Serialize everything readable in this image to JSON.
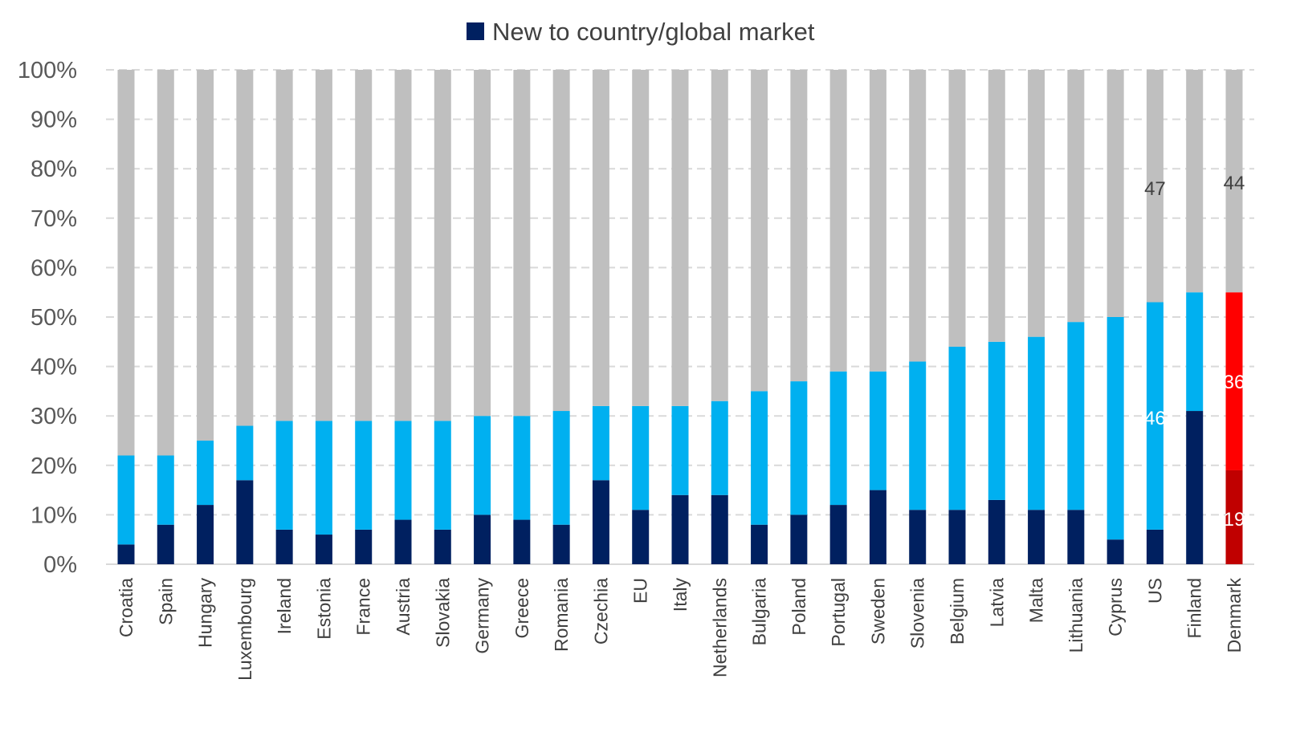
{
  "chart_data": {
    "type": "bar",
    "stacked": true,
    "legend": {
      "position": "top",
      "entries": [
        {
          "label": "New to country/global market",
          "color": "#002060"
        }
      ]
    },
    "ylim": [
      0,
      100
    ],
    "y_ticks": [
      "0%",
      "10%",
      "20%",
      "30%",
      "40%",
      "50%",
      "60%",
      "70%",
      "80%",
      "90%",
      "100%"
    ],
    "grid": "horizontal dashed",
    "categories": [
      "Croatia",
      "Spain",
      "Hungary",
      "Luxembourg",
      "Ireland",
      "Estonia",
      "France",
      "Austria",
      "Slovakia",
      "Germany",
      "Greece",
      "Romania",
      "Czechia",
      "EU",
      "Italy",
      "Netherlands",
      "Bulgaria",
      "Poland",
      "Portugal",
      "Sweden",
      "Slovenia",
      "Belgium",
      "Latvia",
      "Malta",
      "Lithuania",
      "Cyprus",
      "US",
      "Finland",
      "Denmark"
    ],
    "series": [
      {
        "name": "New to country/global market",
        "color": "#002060",
        "highlight_color": "#C00000",
        "values": [
          4,
          8,
          12,
          17,
          7,
          6,
          7,
          9,
          7,
          10,
          9,
          8,
          17,
          11,
          14,
          14,
          8,
          10,
          12,
          15,
          11,
          11,
          13,
          11,
          11,
          5,
          7,
          31,
          19
        ]
      },
      {
        "color": "#00B0F0",
        "highlight_color": "#FF0000",
        "values": [
          18,
          14,
          13,
          11,
          22,
          23,
          22,
          20,
          22,
          20,
          21,
          23,
          15,
          21,
          18,
          19,
          27,
          27,
          27,
          24,
          30,
          33,
          32,
          35,
          38,
          45,
          46,
          24,
          36
        ]
      },
      {
        "color": "#BFBFBF",
        "highlight_color": "#BFBFBF",
        "values": [
          78,
          78,
          75,
          72,
          71,
          71,
          71,
          71,
          71,
          70,
          70,
          69,
          68,
          68,
          68,
          67,
          65,
          63,
          61,
          61,
          59,
          56,
          55,
          54,
          51,
          50,
          47,
          45,
          44
        ]
      }
    ],
    "highlight_category": "Denmark",
    "data_labels": [
      {
        "category": "US",
        "series": 1,
        "text": "46",
        "color": "#FFFFFF"
      },
      {
        "category": "US",
        "series": 2,
        "text": "47",
        "color": "#404040"
      },
      {
        "category": "Denmark",
        "series": 0,
        "text": "19",
        "color": "#FFFFFF"
      },
      {
        "category": "Denmark",
        "series": 1,
        "text": "36",
        "color": "#FFFFFF"
      },
      {
        "category": "Denmark",
        "series": 2,
        "text": "44",
        "color": "#404040"
      }
    ]
  }
}
